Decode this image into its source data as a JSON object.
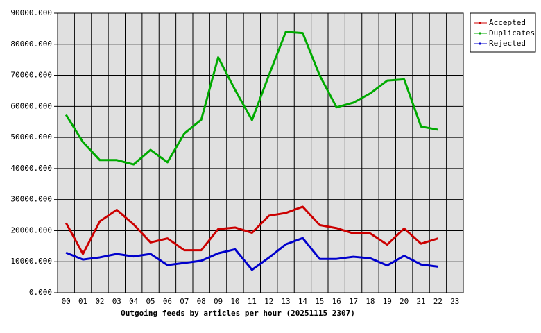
{
  "chart_data": {
    "type": "line",
    "title": "Outgoing feeds by articles per hour (20251115 2307)",
    "categories": [
      "00",
      "01",
      "02",
      "03",
      "04",
      "05",
      "06",
      "07",
      "08",
      "09",
      "10",
      "11",
      "12",
      "13",
      "14",
      "15",
      "16",
      "17",
      "18",
      "19",
      "20",
      "21",
      "22",
      "23"
    ],
    "series": [
      {
        "name": "Accepted",
        "color": "#cc0000",
        "values": [
          22500,
          12500,
          23000,
          26700,
          22000,
          16200,
          17500,
          13700,
          13700,
          20500,
          21000,
          19300,
          24800,
          25700,
          27700,
          21800,
          20800,
          19100,
          19100,
          15500,
          20700,
          15800,
          17500,
          null
        ]
      },
      {
        "name": "Duplicates",
        "color": "#00aa00",
        "values": [
          57300,
          48500,
          42700,
          42700,
          41300,
          46000,
          42000,
          51300,
          55700,
          75800,
          65300,
          55600,
          70000,
          84000,
          83600,
          70000,
          59700,
          61200,
          64200,
          68300,
          68700,
          53500,
          52500,
          null
        ]
      },
      {
        "name": "Rejected",
        "color": "#0000cc",
        "values": [
          12900,
          10700,
          11400,
          12500,
          11700,
          12500,
          8900,
          9600,
          10300,
          12700,
          14000,
          7400,
          11300,
          15600,
          17600,
          10900,
          10900,
          11600,
          11100,
          8800,
          11900,
          9100,
          8400,
          null
        ]
      }
    ],
    "ylim": [
      0,
      90000
    ],
    "yticks": [
      {
        "value": 0,
        "label": "0.000"
      },
      {
        "value": 10000,
        "label": "10000.000"
      },
      {
        "value": 20000,
        "label": "20000.000"
      },
      {
        "value": 30000,
        "label": "30000.000"
      },
      {
        "value": 40000,
        "label": "40000.000"
      },
      {
        "value": 50000,
        "label": "50000.000"
      },
      {
        "value": 60000,
        "label": "60000.000"
      },
      {
        "value": 70000,
        "label": "70000.000"
      },
      {
        "value": 80000,
        "label": "80000.000"
      },
      {
        "value": 90000,
        "label": "90000.000"
      }
    ],
    "grid": true,
    "legend": "outside right"
  }
}
